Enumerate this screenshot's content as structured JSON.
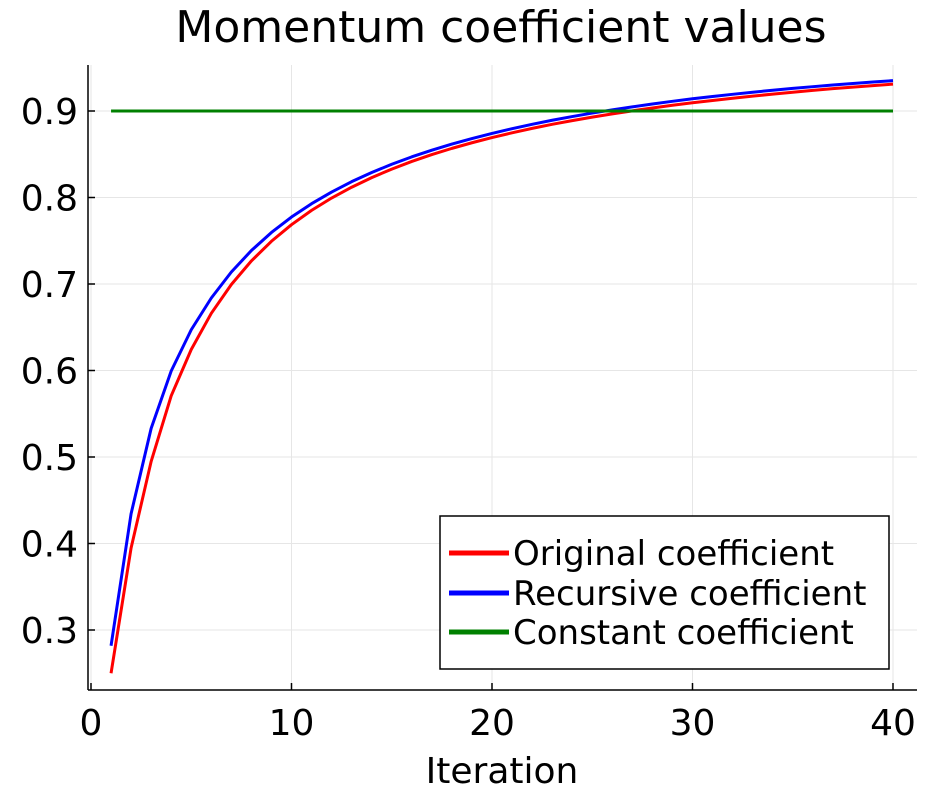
{
  "chart_data": {
    "type": "line",
    "title": "Momentum coefficient values",
    "xlabel": "Iteration",
    "ylabel": "",
    "xlim": [
      1,
      40
    ],
    "ylim": [
      0.25,
      0.95
    ],
    "xticks": [
      0,
      10,
      20,
      30,
      40
    ],
    "yticks": [
      0.3,
      0.4,
      0.5,
      0.6,
      0.7,
      0.8,
      0.9
    ],
    "grid": true,
    "legend_position": "bottom-right",
    "x": [
      1,
      2,
      3,
      4,
      5,
      6,
      7,
      8,
      9,
      10,
      11,
      12,
      13,
      14,
      15,
      16,
      17,
      18,
      19,
      20,
      21,
      22,
      23,
      24,
      25,
      26,
      27,
      28,
      29,
      30,
      31,
      32,
      33,
      34,
      35,
      36,
      37,
      38,
      39,
      40
    ],
    "series": [
      {
        "name": "Original coefficient",
        "color": "#ff0000",
        "values": [
          0.25,
          0.3949,
          0.4949,
          0.5707,
          0.6243,
          0.6661,
          0.6994,
          0.7267,
          0.7494,
          0.7686,
          0.7851,
          0.7994,
          0.8119,
          0.823,
          0.8328,
          0.8417,
          0.8496,
          0.8568,
          0.8633,
          0.8693,
          0.8748,
          0.8799,
          0.8846,
          0.8889,
          0.8929,
          0.8967,
          0.9002,
          0.9035,
          0.9066,
          0.9095,
          0.9122,
          0.9148,
          0.9172,
          0.9195,
          0.9217,
          0.9238,
          0.9258,
          0.9276,
          0.9294,
          0.9311
        ]
      },
      {
        "name": "Recursive coefficient",
        "color": "#0000ff",
        "values": [
          0.2818,
          0.4345,
          0.5331,
          0.5994,
          0.6471,
          0.6838,
          0.7139,
          0.7387,
          0.7596,
          0.7774,
          0.7928,
          0.8063,
          0.8183,
          0.8289,
          0.8384,
          0.847,
          0.8547,
          0.8618,
          0.8682,
          0.8741,
          0.8796,
          0.8846,
          0.8893,
          0.8936,
          0.8976,
          0.9013,
          0.9048,
          0.9081,
          0.9112,
          0.9141,
          0.9168,
          0.9193,
          0.9217,
          0.924,
          0.9261,
          0.9281,
          0.93,
          0.9318,
          0.9335,
          0.9351
        ]
      },
      {
        "name": "Constant coefficient",
        "color": "#008000",
        "values": [
          0.9,
          0.9,
          0.9,
          0.9,
          0.9,
          0.9,
          0.9,
          0.9,
          0.9,
          0.9,
          0.9,
          0.9,
          0.9,
          0.9,
          0.9,
          0.9,
          0.9,
          0.9,
          0.9,
          0.9,
          0.9,
          0.9,
          0.9,
          0.9,
          0.9,
          0.9,
          0.9,
          0.9,
          0.9,
          0.9,
          0.9,
          0.9,
          0.9,
          0.9,
          0.9,
          0.9,
          0.9,
          0.9,
          0.9,
          0.9
        ]
      }
    ]
  }
}
